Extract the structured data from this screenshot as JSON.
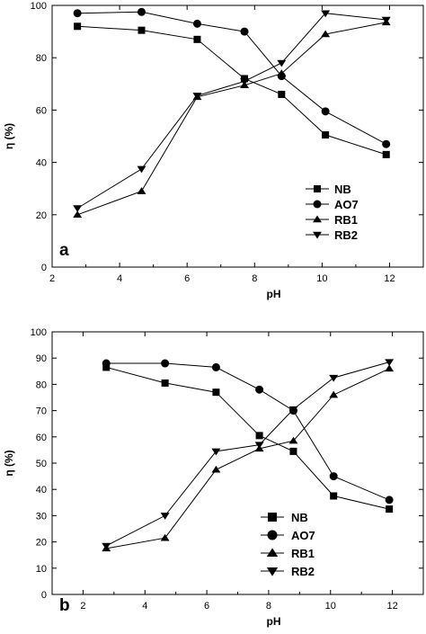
{
  "chart_data": [
    {
      "type": "line",
      "panel_label": "a",
      "xlabel": "pH",
      "ylabel": "η (%)",
      "xlim": [
        2,
        13
      ],
      "ylim": [
        0,
        100
      ],
      "xticks": [
        2,
        4,
        6,
        8,
        10,
        12
      ],
      "yticks": [
        0,
        20,
        40,
        60,
        80,
        100
      ],
      "legend_position": "lower-right",
      "grid": false,
      "series": [
        {
          "name": "NB",
          "marker": "square",
          "x": [
            2.75,
            4.65,
            6.3,
            7.7,
            8.8,
            10.1,
            11.9
          ],
          "y": [
            92,
            90.5,
            87,
            72,
            66,
            50.5,
            43
          ]
        },
        {
          "name": "AO7",
          "marker": "circle",
          "x": [
            2.75,
            4.65,
            6.3,
            7.7,
            8.8,
            10.1,
            11.9
          ],
          "y": [
            97,
            97.5,
            93,
            90,
            73,
            59.5,
            47
          ]
        },
        {
          "name": "RB1",
          "marker": "triangle-up",
          "x": [
            2.75,
            4.65,
            6.3,
            7.7,
            8.8,
            10.1,
            11.9
          ],
          "y": [
            20,
            29,
            65,
            69.5,
            74,
            89,
            93.5
          ]
        },
        {
          "name": "RB2",
          "marker": "triangle-down",
          "x": [
            2.75,
            4.65,
            6.3,
            7.7,
            8.8,
            10.1,
            11.9
          ],
          "y": [
            22.5,
            37.5,
            65.5,
            71,
            78,
            97,
            94.5
          ]
        }
      ]
    },
    {
      "type": "line",
      "panel_label": "b",
      "xlabel": "pH",
      "ylabel": "η (%)",
      "xlim": [
        1,
        13
      ],
      "ylim": [
        0,
        100
      ],
      "xticks": [
        2,
        4,
        6,
        8,
        10,
        12
      ],
      "yticks": [
        0,
        10,
        20,
        30,
        40,
        50,
        60,
        70,
        80,
        90,
        100
      ],
      "legend_position": "lower-right",
      "grid": false,
      "series": [
        {
          "name": "NB",
          "marker": "square",
          "x": [
            2.75,
            4.65,
            6.3,
            7.7,
            8.8,
            10.1,
            11.9
          ],
          "y": [
            86.5,
            80.5,
            77,
            60.5,
            54.5,
            37.5,
            32.5
          ]
        },
        {
          "name": "AO7",
          "marker": "circle",
          "x": [
            2.75,
            4.65,
            6.3,
            7.7,
            8.8,
            10.1,
            11.9
          ],
          "y": [
            88,
            88,
            86.5,
            78,
            70,
            45,
            36
          ]
        },
        {
          "name": "RB1",
          "marker": "triangle-up",
          "x": [
            2.75,
            4.65,
            6.3,
            7.7,
            8.8,
            10.1,
            11.9
          ],
          "y": [
            17.5,
            21.5,
            47.5,
            55.5,
            58.5,
            76,
            86
          ]
        },
        {
          "name": "RB2",
          "marker": "triangle-down",
          "x": [
            2.75,
            4.65,
            6.3,
            7.7,
            8.8,
            10.1,
            11.9
          ],
          "y": [
            18.5,
            30,
            54.5,
            57,
            70.5,
            82.5,
            88.5
          ]
        }
      ]
    }
  ]
}
